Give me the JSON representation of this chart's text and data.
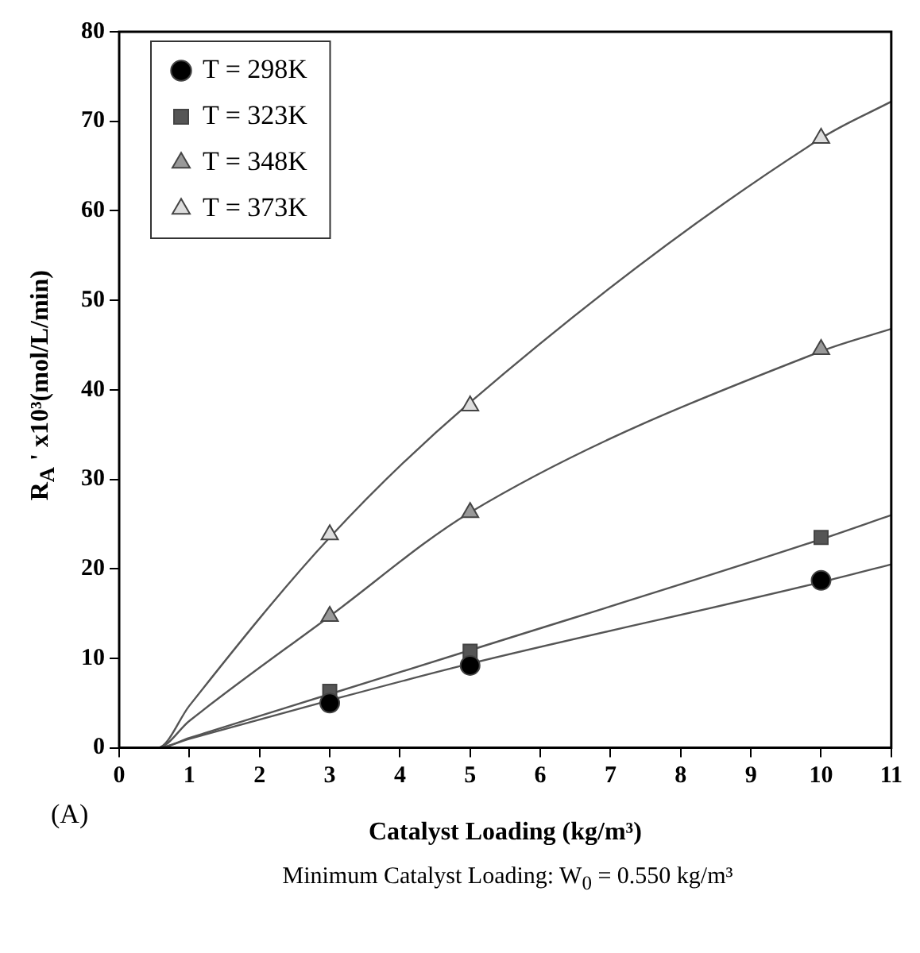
{
  "chart_data": {
    "type": "scatter",
    "xlabel": "Catalyst Loading (kg/m³)",
    "ylabel": "R$_{A}$ ' x10³(mol/L/min)",
    "annotations": [
      "(A)",
      "Minimum Catalyst Loading: W$_{0}$ = 0.550 kg/m³"
    ],
    "xlim": [
      0,
      11
    ],
    "xticks": [
      0,
      1,
      2,
      3,
      4,
      5,
      6,
      7,
      8,
      9,
      10,
      11
    ],
    "ylim": [
      0,
      80
    ],
    "yticks": [
      0,
      10,
      20,
      30,
      40,
      50,
      60,
      70,
      80
    ],
    "grid": false,
    "legend": "top left",
    "series": [
      {
        "type": "line",
        "color": "#555555",
        "marker": "none",
        "x": [
          0.3,
          0.55,
          1,
          3,
          5,
          10,
          11
        ],
        "values": [
          0,
          0,
          1.0,
          5.3,
          9.4,
          18.5,
          20.5
        ]
      },
      {
        "type": "line",
        "color": "#555555",
        "marker": "none",
        "x": [
          0.3,
          0.55,
          1,
          3,
          5,
          10,
          11
        ],
        "values": [
          0,
          0,
          1.1,
          6.0,
          10.9,
          23.3,
          26
        ]
      },
      {
        "type": "line",
        "color": "#555555",
        "marker": "none",
        "x": [
          0.3,
          0.55,
          1,
          3,
          5,
          10,
          11
        ],
        "values": [
          0,
          0,
          3.0,
          14.7,
          26.3,
          44.3,
          46.8
        ]
      },
      {
        "type": "line",
        "color": "#555555",
        "marker": "none",
        "x": [
          0.3,
          0.55,
          1,
          3,
          5,
          10,
          11
        ],
        "values": [
          0,
          0,
          4.7,
          23.5,
          38.6,
          68.1,
          72.2
        ]
      },
      {
        "name": "T = 298K",
        "color": "#000000",
        "marker": "circle",
        "x": [
          3,
          5,
          10
        ],
        "values": [
          5.0,
          9.2,
          18.7
        ]
      },
      {
        "name": "T = 323K",
        "color": "#555555",
        "marker": "square",
        "x": [
          3,
          5,
          10
        ],
        "values": [
          6.3,
          10.8,
          23.5
        ]
      },
      {
        "name": "T = 348K",
        "color": "#999999",
        "marker": "triangle",
        "x": [
          3,
          5,
          10
        ],
        "values": [
          14.7,
          26.3,
          44.5
        ]
      },
      {
        "name": "T = 373K",
        "color": "#dddddd",
        "marker": "triangle",
        "x": [
          3,
          5,
          10
        ],
        "values": [
          23.8,
          38.2,
          68.1
        ]
      }
    ]
  }
}
